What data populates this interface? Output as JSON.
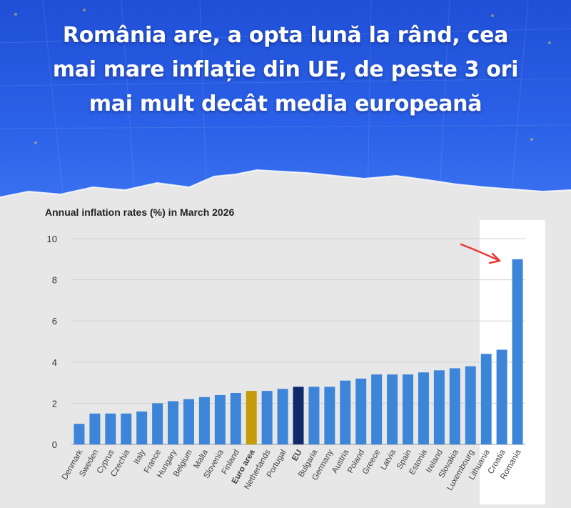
{
  "headline": {
    "line1": "România are, a opta lună la rând, cea",
    "line2": "mai mare inflație din UE, de peste 3 ori",
    "line3": "mai mult decât media europeană"
  },
  "colors": {
    "bar": "#3d85d8",
    "euro_area": "#c59a0b",
    "eu": "#0f2a6b",
    "arrow": "#e53935",
    "hero_blue": "#2a5fe6"
  },
  "chart_data": {
    "type": "bar",
    "title": "Annual inflation rates (%) in March 2026",
    "ylim": [
      0,
      10
    ],
    "yticks": [
      "0",
      "2",
      "4",
      "6",
      "8",
      "10"
    ],
    "grid": true,
    "categories": [
      "Denmark",
      "Sweden",
      "Cyprus",
      "Czechia",
      "Italy",
      "France",
      "Hungary",
      "Belgium",
      "Malta",
      "Slovenia",
      "Finland",
      "Euro area",
      "Netherlands",
      "Portugal",
      "EU",
      "Bulgaria",
      "Germany",
      "Austria",
      "Poland",
      "Greece",
      "Latvia",
      "Spain",
      "Estonia",
      "Ireland",
      "Slovakia",
      "Luxembourg",
      "Lithuania",
      "Croatia",
      "Romania"
    ],
    "values": [
      1.0,
      1.5,
      1.5,
      1.5,
      1.6,
      2.0,
      2.1,
      2.2,
      2.3,
      2.4,
      2.5,
      2.6,
      2.6,
      2.7,
      2.8,
      2.8,
      2.8,
      3.1,
      3.2,
      3.4,
      3.4,
      3.4,
      3.5,
      3.6,
      3.7,
      3.8,
      4.4,
      4.6,
      9.0
    ],
    "highlighted": [
      "Euro area",
      "EU",
      "Romania"
    ]
  }
}
